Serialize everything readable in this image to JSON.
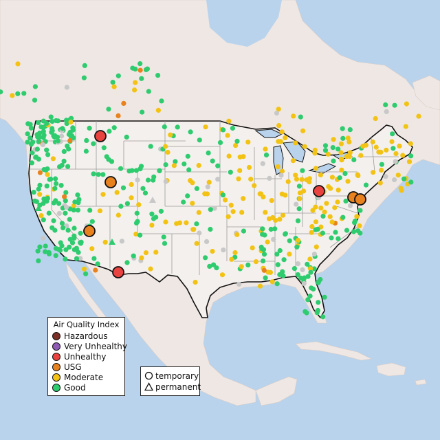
{
  "legend": {
    "title": "Air Quality Index",
    "categories": [
      {
        "label": "Hazardous",
        "color": "#7a3026"
      },
      {
        "label": "Very Unhealthy",
        "color": "#8e5bb5"
      },
      {
        "label": "Unhealthy",
        "color": "#e8433e"
      },
      {
        "label": "USG",
        "color": "#e8821e"
      },
      {
        "label": "Moderate",
        "color": "#f2c314"
      },
      {
        "label": "Good",
        "color": "#2fcb6f"
      }
    ]
  },
  "monitor_types": {
    "temporary": {
      "label": "temporary",
      "icon": "circle-icon"
    },
    "permanent": {
      "label": "permanent",
      "icon": "triangle-icon"
    }
  },
  "colors": {
    "water": "#b9d3ec",
    "land": "#efe7e3",
    "us_fill": "#f4f0ed",
    "border": "#111111",
    "state_lines": "#9a9a9a",
    "no_data": "#c8c8c8"
  }
}
